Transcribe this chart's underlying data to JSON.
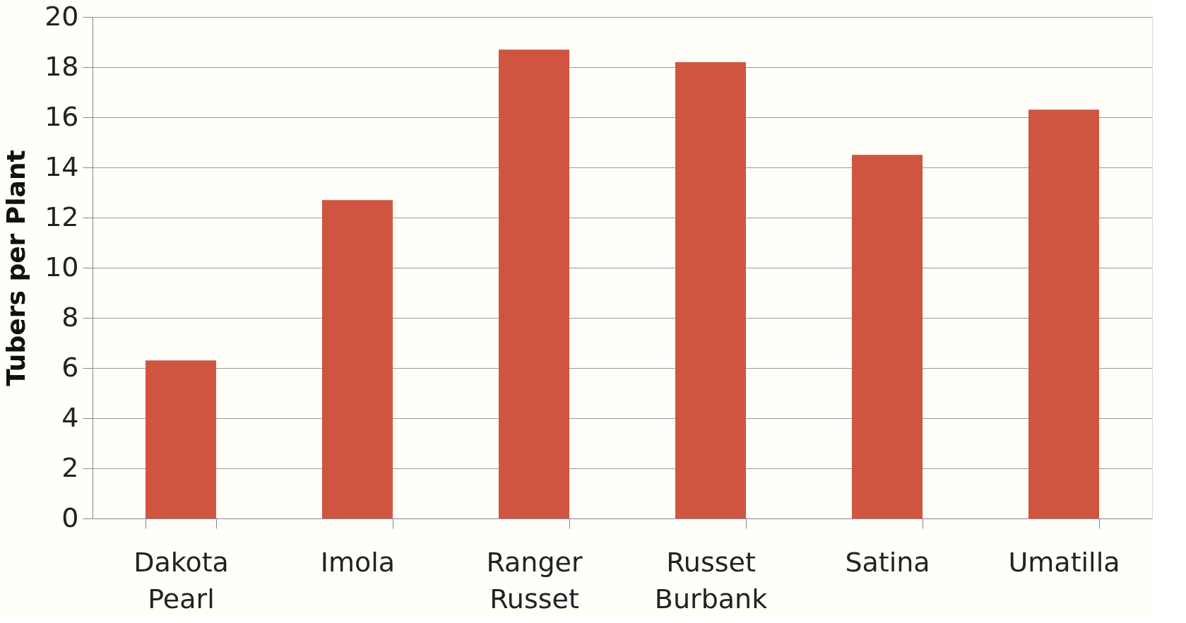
{
  "chart_data": {
    "type": "bar",
    "ylabel": "Tubers per Plant",
    "categories": [
      "Dakota Pearl",
      "Imola",
      "Ranger Russet",
      "Russet Burbank",
      "Satina",
      "Umatilla"
    ],
    "values": [
      6.3,
      12.7,
      18.7,
      18.2,
      14.5,
      16.3
    ],
    "color": "#d05540",
    "ylim": [
      0,
      20
    ],
    "yticks": [
      0,
      2,
      4,
      6,
      8,
      10,
      12,
      14,
      16,
      18,
      20
    ],
    "grid": "y"
  }
}
